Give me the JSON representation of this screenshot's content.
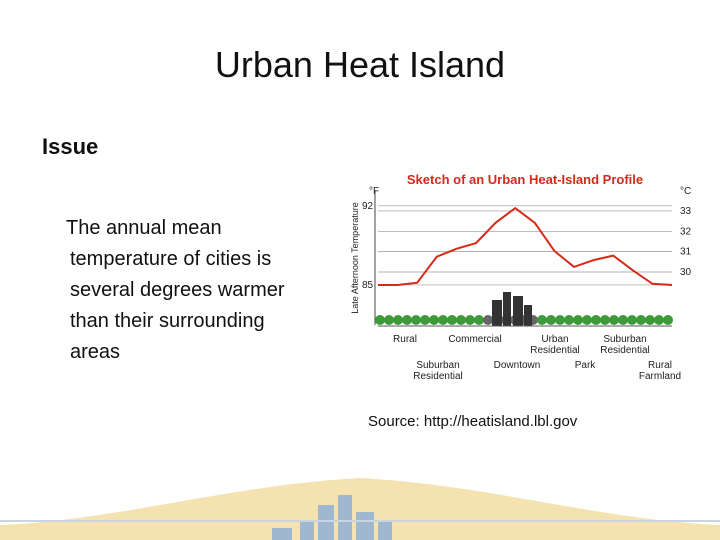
{
  "slide": {
    "title": "Urban Heat Island",
    "heading": "Issue",
    "body": "The annual mean temperature of cities is several degrees warmer than their surrounding areas",
    "source": "Source: http://heatisland.lbl.gov"
  },
  "figure": {
    "title": "Sketch of an Urban Heat-Island Profile",
    "y_label": "Late Afternoon Temperature",
    "y_unit": "°F",
    "y2_unit": "°C",
    "ylim": [
      81.9,
      93.4
    ],
    "yticks": [
      92,
      85
    ],
    "y2lim": [
      27.64,
      34.03
    ],
    "y2ticks": [
      33,
      32,
      31,
      30
    ],
    "color": "#d42a1a",
    "values": [
      85,
      85,
      85.2,
      87.5,
      88.2,
      88.7,
      90.5,
      91.8,
      90.5,
      88,
      86.6,
      87.2,
      87.6,
      86.3,
      85.1,
      85
    ],
    "top_labels": [
      [
        "Rural"
      ],
      [
        "Commercial"
      ],
      [
        "Urban",
        "Residential"
      ],
      [
        "Suburban",
        "Residential"
      ]
    ],
    "bottom_labels": [
      [
        "Suburban",
        "Residential"
      ],
      [
        "Downtown"
      ],
      [
        "Park"
      ],
      [
        "Rural",
        "Farmland"
      ]
    ]
  }
}
